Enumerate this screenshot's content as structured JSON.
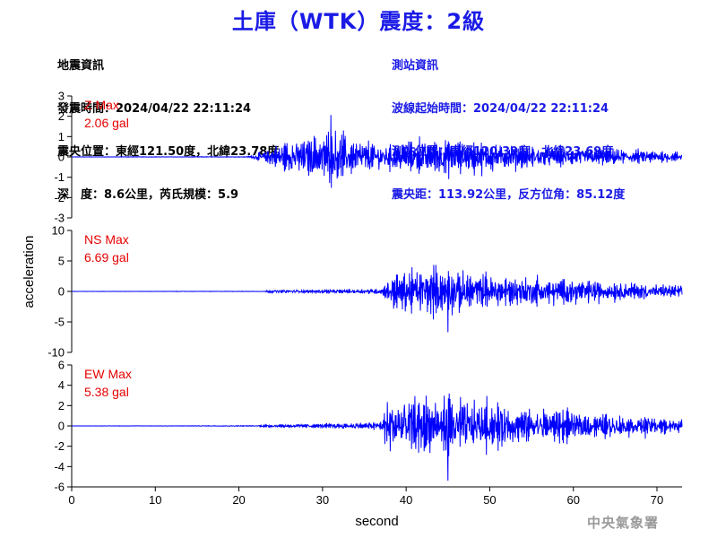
{
  "header": {
    "title": "土庫（WTK）震度：2級"
  },
  "quake_info": {
    "heading": "地震資訊",
    "origin_time": "發震時間：2024/04/22 22:11:24",
    "epicenter": "震央位置：東經121.50度，北緯23.78度",
    "depth_magnitude": "深　度：8.6公里，芮氏規模：5.9"
  },
  "station_info": {
    "heading": "測站資訊",
    "wave_start": "波線起始時間：2024/04/22 22:11:24",
    "location": "測站位置：東經120.39度，北緯23.69度",
    "distance": "震央距：113.92公里，反方位角：85.12度"
  },
  "watermark": "中央氣象署",
  "colors": {
    "trace": "#0000ff",
    "title": "#1a1ae6",
    "max_label": "#e60000",
    "axis": "#000000"
  },
  "chart_data": {
    "type": "line",
    "xlabel": "second",
    "ylabel": "acceleration",
    "xlim": [
      0,
      73
    ],
    "xticks": [
      0,
      10,
      20,
      30,
      40,
      50,
      60,
      70
    ],
    "panels": [
      {
        "name": "Z",
        "max_title": "Z Max",
        "max_value": "2.06 gal",
        "ylim": [
          -3,
          3
        ],
        "yticks": [
          -3,
          -2,
          -1,
          0,
          1,
          2,
          3
        ],
        "envelope_points": [
          [
            0,
            0.01
          ],
          [
            21,
            0.02
          ],
          [
            22.5,
            0.3
          ],
          [
            25,
            0.9
          ],
          [
            28,
            1.3
          ],
          [
            31,
            1.7
          ],
          [
            34,
            1.2
          ],
          [
            37,
            0.8
          ],
          [
            40,
            1.0
          ],
          [
            43,
            1.2
          ],
          [
            47,
            1.0
          ],
          [
            50,
            0.9
          ],
          [
            55,
            0.7
          ],
          [
            60,
            0.6
          ],
          [
            65,
            0.5
          ],
          [
            70,
            0.45
          ],
          [
            73,
            0.3
          ]
        ],
        "peak": {
          "t": 31.0,
          "value": 2.06
        }
      },
      {
        "name": "NS",
        "max_title": "NS Max",
        "max_value": "6.69 gal",
        "ylim": [
          -10,
          10
        ],
        "yticks": [
          -10,
          -5,
          0,
          5,
          10
        ],
        "envelope_points": [
          [
            0,
            0.02
          ],
          [
            23,
            0.05
          ],
          [
            23.5,
            0.3
          ],
          [
            30,
            0.4
          ],
          [
            35,
            0.5
          ],
          [
            37,
            0.7
          ],
          [
            38,
            3.0
          ],
          [
            40,
            4.5
          ],
          [
            44,
            5.0
          ],
          [
            47,
            4.0
          ],
          [
            50,
            3.5
          ],
          [
            55,
            3.0
          ],
          [
            60,
            2.8
          ],
          [
            65,
            2.0
          ],
          [
            70,
            1.5
          ],
          [
            73,
            1.2
          ]
        ],
        "peak": {
          "t": 45.0,
          "value": -6.69
        }
      },
      {
        "name": "EW",
        "max_title": "EW Max",
        "max_value": "5.38 gal",
        "ylim": [
          -6,
          6
        ],
        "yticks": [
          -6,
          -4,
          -2,
          0,
          2,
          4,
          6
        ],
        "envelope_points": [
          [
            0,
            0.01
          ],
          [
            22,
            0.05
          ],
          [
            23,
            0.15
          ],
          [
            30,
            0.3
          ],
          [
            35,
            0.45
          ],
          [
            37,
            0.7
          ],
          [
            38,
            3.8
          ],
          [
            40,
            3.5
          ],
          [
            45,
            3.5
          ],
          [
            48,
            3.0
          ],
          [
            50,
            2.8
          ],
          [
            55,
            2.2
          ],
          [
            60,
            1.8
          ],
          [
            65,
            1.4
          ],
          [
            70,
            1.2
          ],
          [
            73,
            0.8
          ]
        ],
        "peak": {
          "t": 45.0,
          "value": -5.38
        }
      }
    ]
  }
}
